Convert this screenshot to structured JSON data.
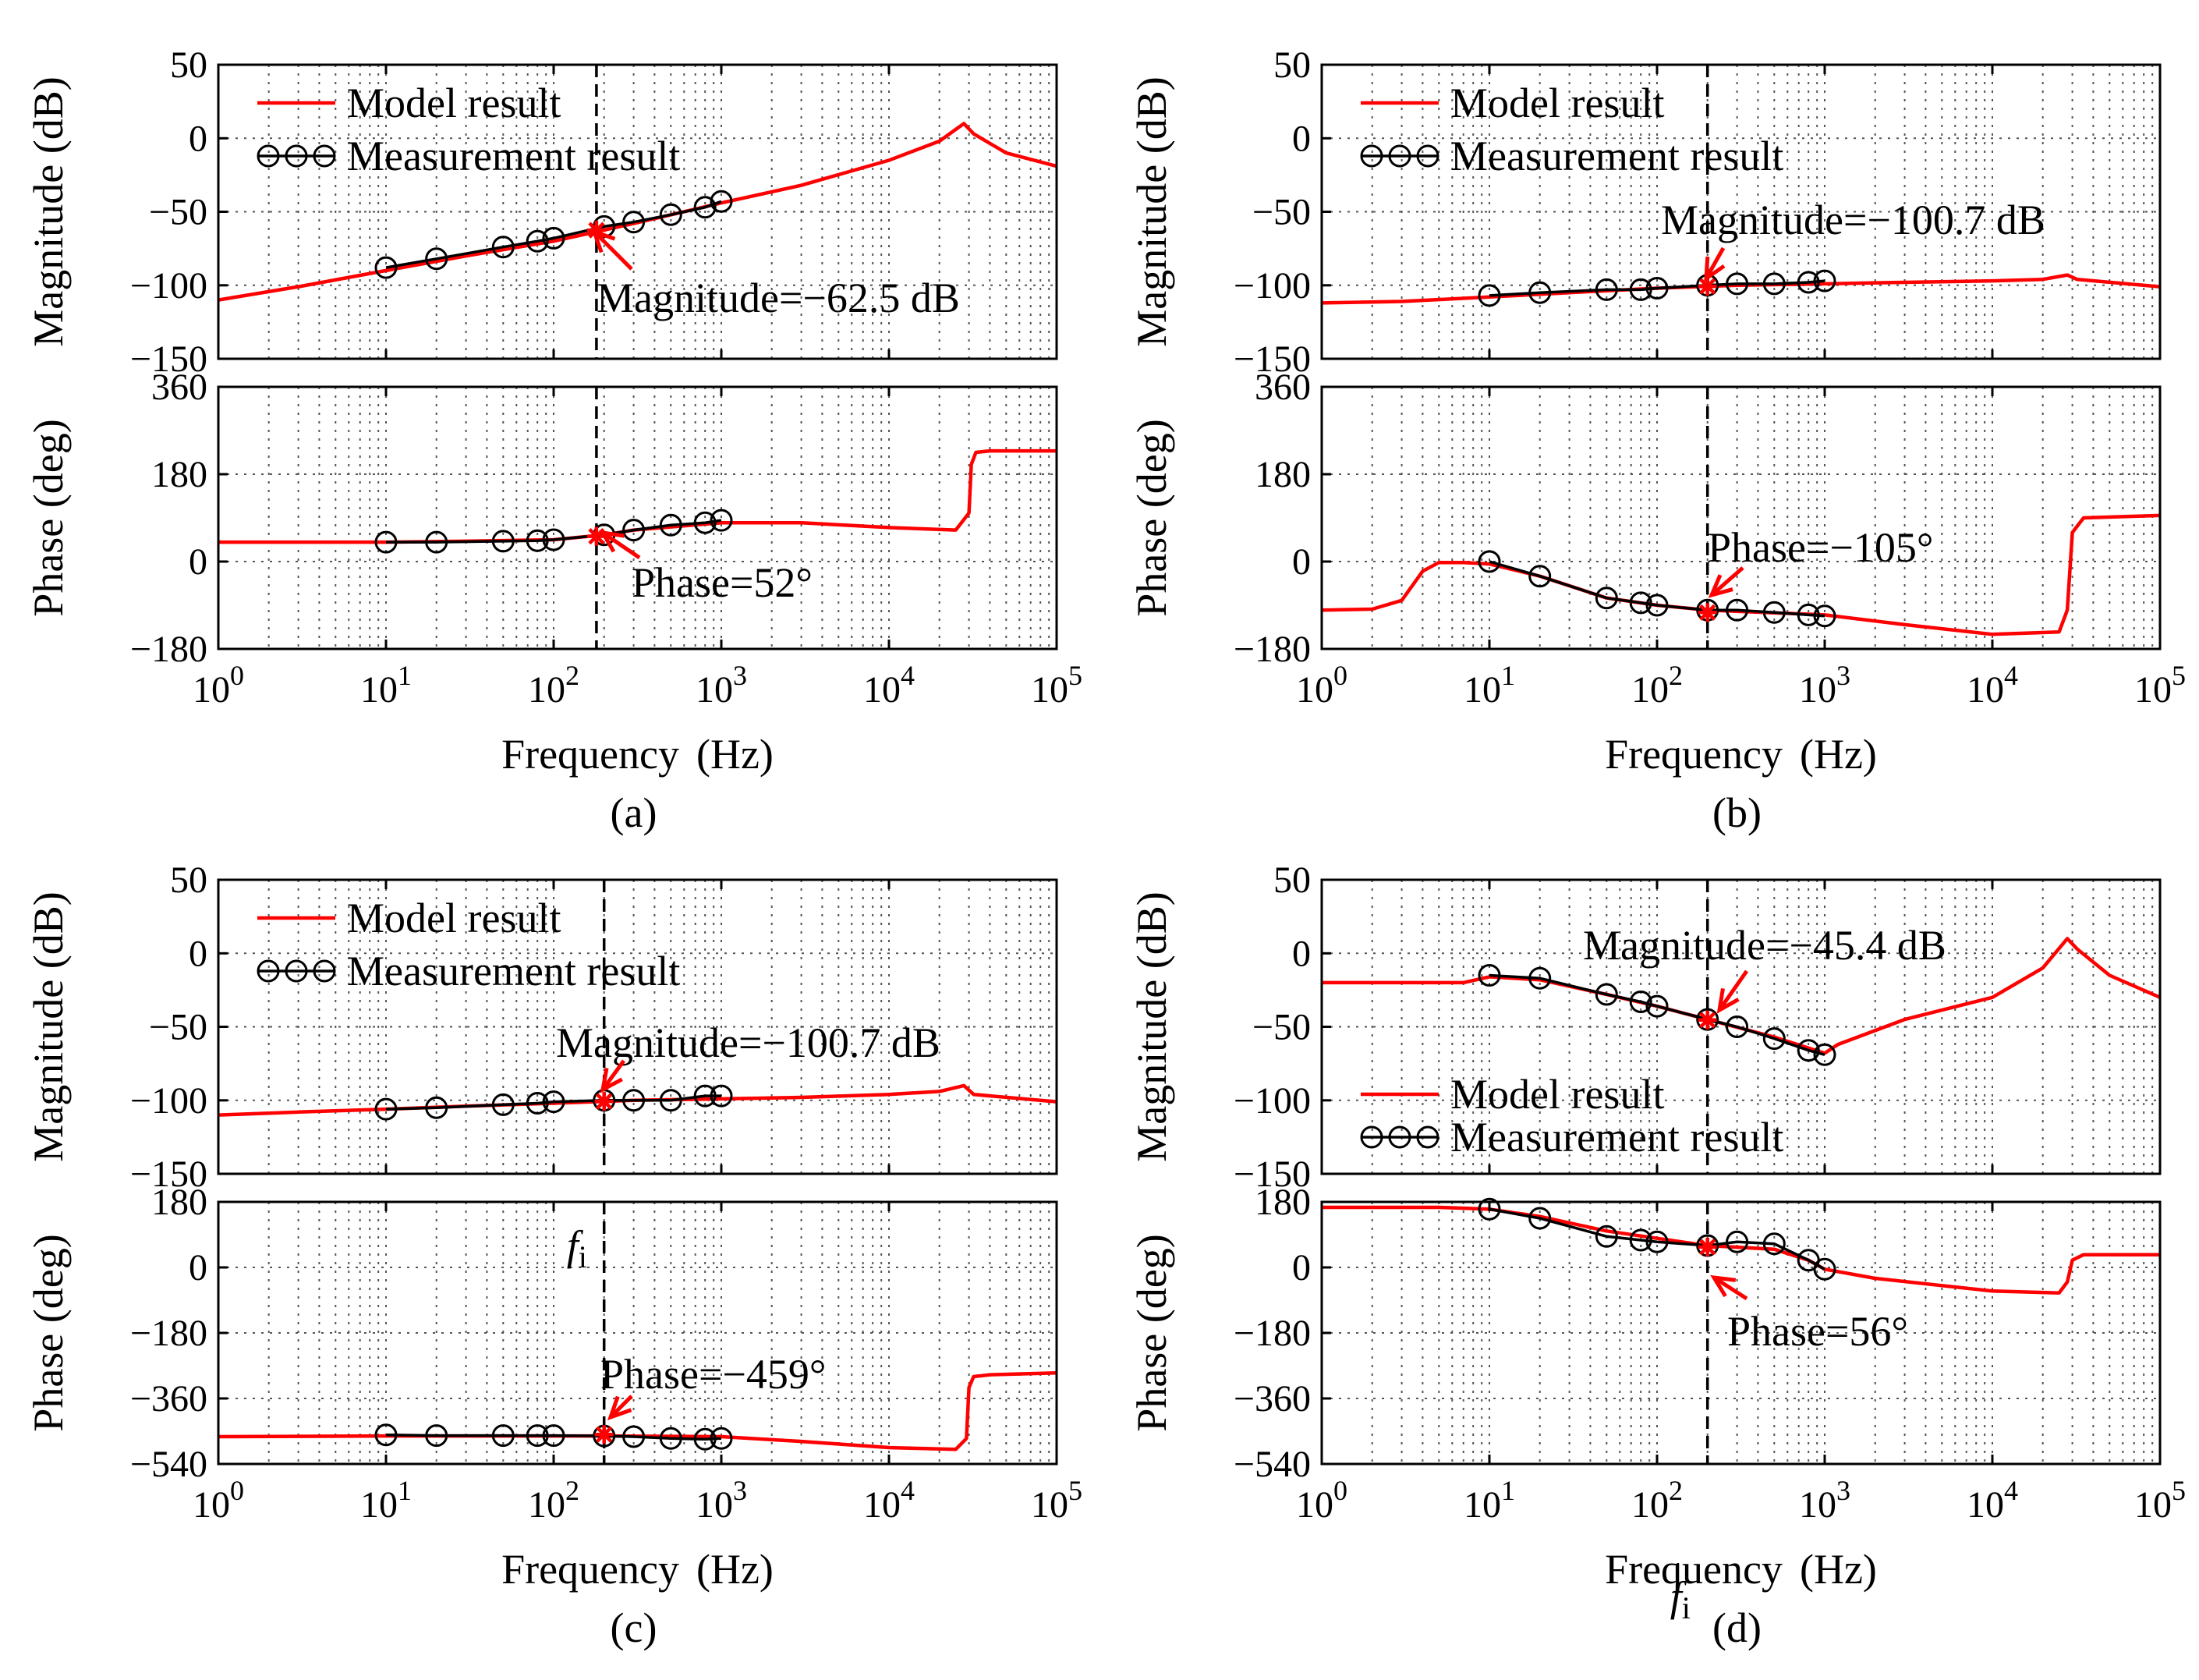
{
  "figure": {
    "x_label": "Frequency",
    "x_unit": "(Hz)",
    "magnitude_label": "Magnitude (dB)",
    "phase_label": "Phase (deg)",
    "legend_model": "Model result",
    "legend_measurement": "Measurement result",
    "x_tick_base": "10",
    "x_tick_exponents": [
      "0",
      "1",
      "2",
      "3",
      "4",
      "5"
    ],
    "fi_label": "f",
    "fi_subscript": "i",
    "colors": {
      "model": "#ff0000",
      "measurement": "#000000",
      "grid": "#555555"
    }
  },
  "chart_data": [
    {
      "type": "line",
      "caption": "(a)",
      "xlim": [
        1,
        100000
      ],
      "x_scale": "log",
      "marker_frequency": 180,
      "measurement_frequencies": [
        10,
        20,
        50,
        80,
        100,
        200,
        300,
        500,
        800,
        1000
      ],
      "magnitude": {
        "ylim": [
          -150,
          50
        ],
        "yticks": [
          "50",
          "0",
          "−50",
          "−100",
          "−150"
        ],
        "ytick_values": [
          50,
          0,
          -50,
          -100,
          -150
        ],
        "model": {
          "x": [
            1,
            3,
            10,
            30,
            100,
            300,
            1000,
            3000,
            10000,
            20000,
            28000,
            32000,
            50000,
            100000
          ],
          "y": [
            -110,
            -101,
            -90,
            -80,
            -70,
            -58,
            -44,
            -32,
            -15,
            -2,
            10,
            3,
            -10,
            -19
          ]
        },
        "measurement": [
          -88,
          -82,
          -74,
          -70,
          -68,
          -60,
          -57,
          -52,
          -47,
          -43
        ],
        "annotation": "Magnitude=−62.5 dB",
        "annotation_value": -62.5,
        "legend_position": "top-left"
      },
      "phase": {
        "ylim": [
          -180,
          360
        ],
        "yticks": [
          "360",
          "180",
          "0",
          "−180"
        ],
        "ytick_values": [
          360,
          180,
          0,
          -180
        ],
        "model": {
          "x": [
            1,
            10,
            30,
            100,
            200,
            300,
            1000,
            3000,
            10000,
            25000,
            30000,
            31000,
            33000,
            40000,
            100000
          ],
          "y": [
            40,
            40,
            42,
            45,
            55,
            65,
            80,
            80,
            70,
            65,
            100,
            200,
            225,
            228,
            228
          ]
        },
        "measurement": [
          40,
          40,
          42,
          43,
          45,
          55,
          65,
          75,
          80,
          85
        ],
        "annotation": "Phase=52°",
        "annotation_value": 52
      }
    },
    {
      "type": "line",
      "caption": "(b)",
      "xlim": [
        1,
        100000
      ],
      "x_scale": "log",
      "marker_frequency": 200,
      "measurement_frequencies": [
        10,
        20,
        50,
        80,
        100,
        200,
        300,
        500,
        800,
        1000
      ],
      "magnitude": {
        "ylim": [
          -150,
          50
        ],
        "yticks": [
          "50",
          "0",
          "−50",
          "−100",
          "−150"
        ],
        "ytick_values": [
          50,
          0,
          -50,
          -100,
          -150
        ],
        "model": {
          "x": [
            1,
            3,
            10,
            30,
            100,
            300,
            1000,
            3000,
            10000,
            20000,
            28000,
            32000,
            100000
          ],
          "y": [
            -112,
            -111,
            -108,
            -105,
            -102,
            -100,
            -99,
            -98,
            -97,
            -96,
            -93,
            -96,
            -101
          ]
        },
        "measurement": [
          -107,
          -105,
          -103,
          -103,
          -102,
          -100,
          -99,
          -99,
          -98,
          -97
        ],
        "annotation": "Magnitude=−100.7 dB",
        "annotation_value": -100.7,
        "legend_position": "top-left"
      },
      "phase": {
        "ylim": [
          -180,
          360
        ],
        "yticks": [
          "360",
          "180",
          "0",
          "−180"
        ],
        "ytick_values": [
          360,
          180,
          0,
          -180
        ],
        "model": {
          "x": [
            1,
            2,
            3,
            4,
            5,
            7,
            10,
            20,
            50,
            100,
            200,
            1000,
            3000,
            10000,
            25000,
            28000,
            30000,
            35000,
            100000
          ],
          "y": [
            -100,
            -98,
            -80,
            -20,
            -2,
            -2,
            -5,
            -30,
            -75,
            -90,
            -100,
            -110,
            -130,
            -150,
            -145,
            -100,
            60,
            90,
            95
          ]
        },
        "measurement": [
          0,
          -30,
          -75,
          -85,
          -90,
          -100,
          -100,
          -105,
          -110,
          -112
        ],
        "annotation": "Phase=−105°",
        "annotation_value": -105
      }
    },
    {
      "type": "line",
      "caption": "(c)",
      "xlim": [
        1,
        100000
      ],
      "x_scale": "log",
      "marker_frequency": 200,
      "measurement_frequencies": [
        10,
        20,
        50,
        80,
        100,
        200,
        300,
        500,
        800,
        1000
      ],
      "magnitude": {
        "ylim": [
          -150,
          50
        ],
        "yticks": [
          "50",
          "0",
          "−50",
          "−100",
          "−150"
        ],
        "ytick_values": [
          50,
          0,
          -50,
          -100,
          -150
        ],
        "model": {
          "x": [
            1,
            3,
            10,
            30,
            100,
            300,
            1000,
            3000,
            10000,
            20000,
            28000,
            32000,
            100000
          ],
          "y": [
            -110,
            -108,
            -106,
            -104,
            -102,
            -100,
            -99,
            -98,
            -96,
            -94,
            -90,
            -96,
            -101
          ]
        },
        "measurement": [
          -106,
          -105,
          -103,
          -102,
          -101,
          -100,
          -100,
          -100,
          -97,
          -97
        ],
        "annotation": "Magnitude=−100.7 dB",
        "annotation_value": -100.7,
        "legend_position": "top-left"
      },
      "phase": {
        "ylim": [
          -540,
          180
        ],
        "yticks": [
          "180",
          "0",
          "−180",
          "−360",
          "−540"
        ],
        "ytick_values": [
          180,
          0,
          -180,
          -360,
          -540
        ],
        "model": {
          "x": [
            1,
            10,
            100,
            200,
            1000,
            3000,
            10000,
            25000,
            29000,
            30000,
            32000,
            40000,
            100000
          ],
          "y": [
            -465,
            -463,
            -463,
            -463,
            -465,
            -478,
            -495,
            -500,
            -470,
            -330,
            -300,
            -295,
            -290
          ]
        },
        "measurement": [
          -460,
          -462,
          -462,
          -462,
          -462,
          -463,
          -465,
          -470,
          -472,
          -470
        ],
        "annotation": "Phase=−459°",
        "annotation_value": -459
      }
    },
    {
      "type": "line",
      "caption": "(d)",
      "xlim": [
        1,
        100000
      ],
      "x_scale": "log",
      "marker_frequency": 200,
      "measurement_frequencies": [
        10,
        20,
        50,
        80,
        100,
        200,
        300,
        500,
        800,
        1000
      ],
      "magnitude": {
        "ylim": [
          -150,
          50
        ],
        "yticks": [
          "50",
          "0",
          "−50",
          "−100",
          "−150"
        ],
        "ytick_values": [
          50,
          0,
          -50,
          -100,
          -150
        ],
        "model": {
          "x": [
            1,
            3,
            7,
            10,
            20,
            50,
            100,
            200,
            500,
            1000,
            1200,
            3000,
            10000,
            20000,
            28000,
            32000,
            50000,
            100000
          ],
          "y": [
            -20,
            -20,
            -20,
            -16,
            -18,
            -28,
            -36,
            -45,
            -57,
            -68,
            -62,
            -45,
            -30,
            -10,
            10,
            3,
            -15,
            -30
          ]
        },
        "measurement": [
          -15,
          -17,
          -28,
          -33,
          -36,
          -45,
          -50,
          -58,
          -66,
          -69
        ],
        "annotation": "Magnitude=−45.4 dB",
        "annotation_value": -45.4,
        "legend_position": "lower-left"
      },
      "phase": {
        "ylim": [
          -540,
          180
        ],
        "yticks": [
          "180",
          "0",
          "−180",
          "−360",
          "−540"
        ],
        "ytick_values": [
          180,
          0,
          -180,
          -360,
          -540
        ],
        "model": {
          "x": [
            1,
            5,
            10,
            20,
            50,
            100,
            200,
            500,
            800,
            1000,
            2000,
            5000,
            10000,
            25000,
            28000,
            30000,
            35000,
            100000
          ],
          "y": [
            165,
            165,
            160,
            140,
            100,
            80,
            60,
            50,
            20,
            -5,
            -30,
            -50,
            -65,
            -70,
            -40,
            20,
            35,
            35
          ]
        },
        "measurement": [
          160,
          135,
          85,
          75,
          70,
          60,
          70,
          65,
          20,
          -5
        ],
        "annotation": "Phase=56°",
        "annotation_value": 56
      }
    }
  ]
}
